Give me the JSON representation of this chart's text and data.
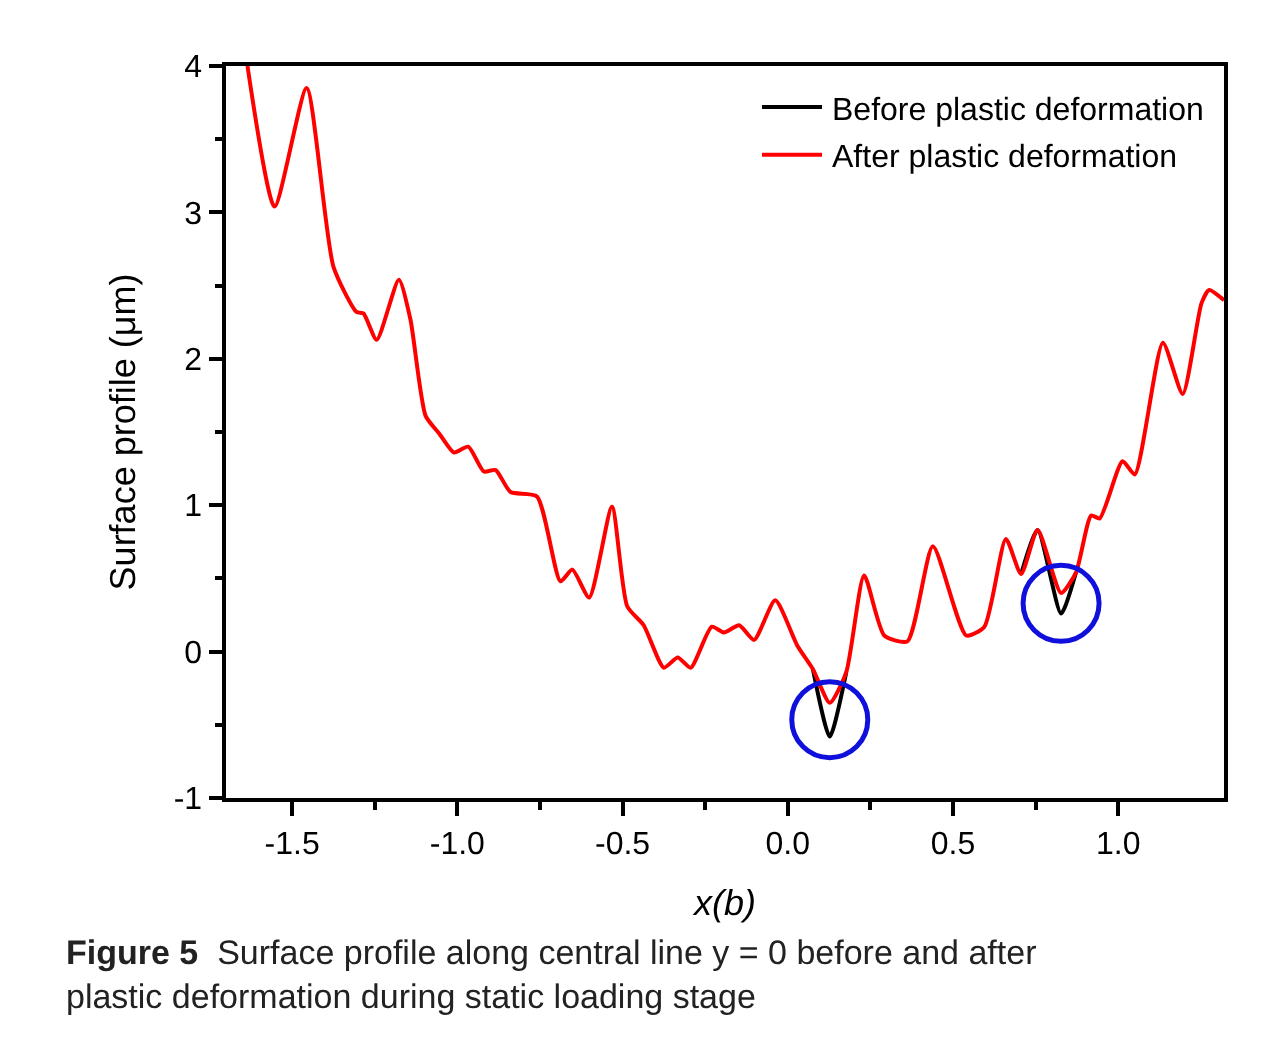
{
  "chart_data": {
    "type": "line",
    "xlabel": "x(b)",
    "ylabel": "Surface profile (μm)",
    "x": [
      -1.635,
      -1.553,
      -1.456,
      -1.375,
      -1.305,
      -1.284,
      -1.244,
      -1.177,
      -1.142,
      -1.096,
      -1.055,
      -1.01,
      -0.967,
      -0.92,
      -0.884,
      -0.839,
      -0.759,
      -0.688,
      -0.652,
      -0.601,
      -0.532,
      -0.486,
      -0.436,
      -0.375,
      -0.333,
      -0.294,
      -0.23,
      -0.193,
      -0.147,
      -0.102,
      -0.038,
      0.029,
      0.076,
      0.127,
      0.177,
      0.231,
      0.292,
      0.362,
      0.439,
      0.54,
      0.595,
      0.66,
      0.706,
      0.756,
      0.827,
      0.872,
      0.918,
      0.944,
      1.013,
      1.05,
      1.135,
      1.195,
      1.252,
      1.275,
      1.32
    ],
    "series": [
      {
        "name": "Before plastic deformation",
        "color": "#000000",
        "values": [
          null,
          null,
          null,
          null,
          null,
          null,
          null,
          null,
          null,
          null,
          null,
          null,
          null,
          null,
          null,
          null,
          null,
          null,
          null,
          null,
          null,
          null,
          null,
          null,
          null,
          null,
          null,
          null,
          null,
          null,
          null,
          null,
          -0.12,
          -0.58,
          -0.14,
          null,
          null,
          null,
          null,
          null,
          null,
          null,
          0.53,
          0.83,
          0.26,
          0.54,
          null,
          null,
          null,
          null,
          null,
          null,
          null,
          null,
          null
        ]
      },
      {
        "name": "After plastic deformation",
        "color": "#ff0000",
        "values": [
          4.0,
          3.04,
          3.85,
          2.63,
          2.32,
          2.31,
          2.13,
          2.54,
          2.27,
          1.61,
          1.49,
          1.36,
          1.4,
          1.23,
          1.24,
          1.09,
          1.06,
          0.48,
          0.56,
          0.37,
          0.99,
          0.31,
          0.18,
          -0.11,
          -0.04,
          -0.11,
          0.17,
          0.13,
          0.18,
          0.08,
          0.35,
          0.04,
          -0.12,
          -0.35,
          -0.14,
          0.52,
          0.11,
          0.07,
          0.72,
          0.11,
          0.17,
          0.77,
          0.53,
          0.83,
          0.4,
          0.54,
          0.93,
          0.91,
          1.3,
          1.21,
          2.11,
          1.76,
          2.38,
          2.47,
          2.4
        ]
      }
    ],
    "xlim": [
      -1.7,
      1.32
    ],
    "xticks": [
      {
        "value": -1.5,
        "label": "-1.5"
      },
      {
        "value": -1.0,
        "label": "-1.0"
      },
      {
        "value": -0.5,
        "label": "-0.5"
      },
      {
        "value": 0,
        "label": "0.0"
      },
      {
        "value": 0.5,
        "label": "0.5"
      },
      {
        "value": 1.0,
        "label": "1.0"
      }
    ],
    "ylim": [
      -1,
      4
    ],
    "yticks": [
      -1,
      0,
      1,
      2,
      3,
      4
    ],
    "legend": "top right",
    "marker": "none",
    "line_style": "solid",
    "annotations": [
      "Figure 5  Surface profile along central line y = 0 before and after plastic deformation during static loading stage"
    ]
  }
}
